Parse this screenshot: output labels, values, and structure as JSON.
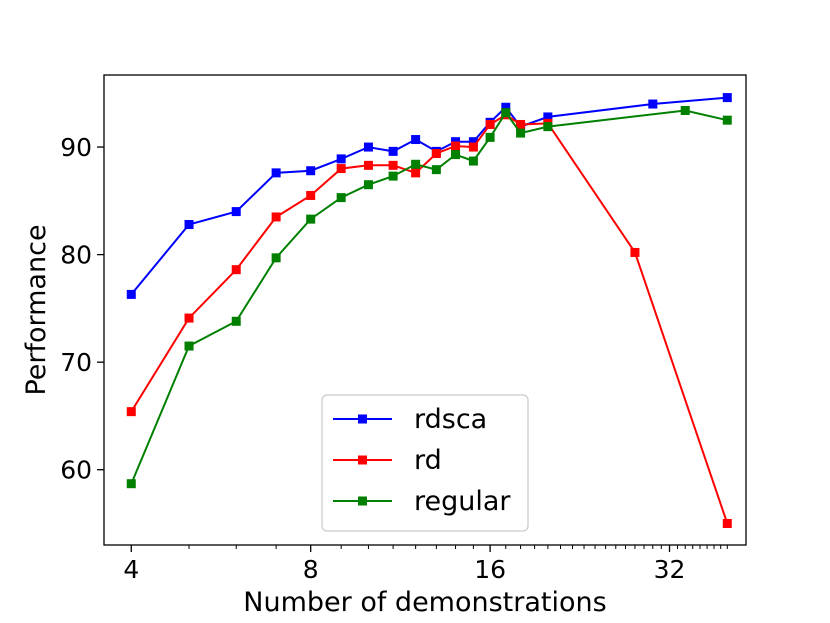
{
  "chart_data": {
    "type": "line",
    "title": "",
    "xlabel": "Number of demonstrations",
    "ylabel": "Performance",
    "x_scale": "log2",
    "xlim": [
      3.6,
      43
    ],
    "ylim": [
      53,
      96.7
    ],
    "x_ticks": [
      4,
      8,
      16,
      32
    ],
    "x_tick_labels": [
      "4",
      "8",
      "16",
      "32"
    ],
    "y_ticks": [
      60,
      70,
      80,
      90
    ],
    "y_tick_labels": [
      "60",
      "70",
      "80",
      "90"
    ],
    "grid": false,
    "legend_position": "lower-center",
    "series": [
      {
        "name": "rdsca",
        "color": "#0000ff",
        "marker": "square",
        "x": [
          4,
          5,
          6,
          7,
          8,
          9,
          10,
          11,
          12,
          13,
          14,
          15,
          16,
          17,
          18,
          20,
          30,
          40
        ],
        "y": [
          76.3,
          82.8,
          84.0,
          87.6,
          87.8,
          88.9,
          90.0,
          89.6,
          90.7,
          89.6,
          90.5,
          90.5,
          92.3,
          93.7,
          91.9,
          92.8,
          94.0,
          94.6
        ]
      },
      {
        "name": "rd",
        "color": "#ff0000",
        "marker": "square",
        "x": [
          4,
          5,
          6,
          7,
          8,
          9,
          10,
          11,
          12,
          13,
          14,
          15,
          16,
          17,
          18,
          20,
          28,
          40
        ],
        "y": [
          65.4,
          74.1,
          78.6,
          83.5,
          85.5,
          88.0,
          88.3,
          88.3,
          87.6,
          89.4,
          90.1,
          90.0,
          92.1,
          93.0,
          92.1,
          92.2,
          80.2,
          55.0
        ]
      },
      {
        "name": "regular",
        "color": "#008000",
        "marker": "square",
        "x": [
          4,
          5,
          6,
          7,
          8,
          9,
          10,
          11,
          12,
          13,
          14,
          15,
          16,
          17,
          18,
          20,
          34,
          40
        ],
        "y": [
          58.7,
          71.5,
          73.8,
          79.7,
          83.3,
          85.3,
          86.5,
          87.3,
          88.4,
          87.9,
          89.3,
          88.7,
          90.9,
          93.2,
          91.3,
          91.9,
          93.4,
          92.5
        ]
      }
    ]
  }
}
